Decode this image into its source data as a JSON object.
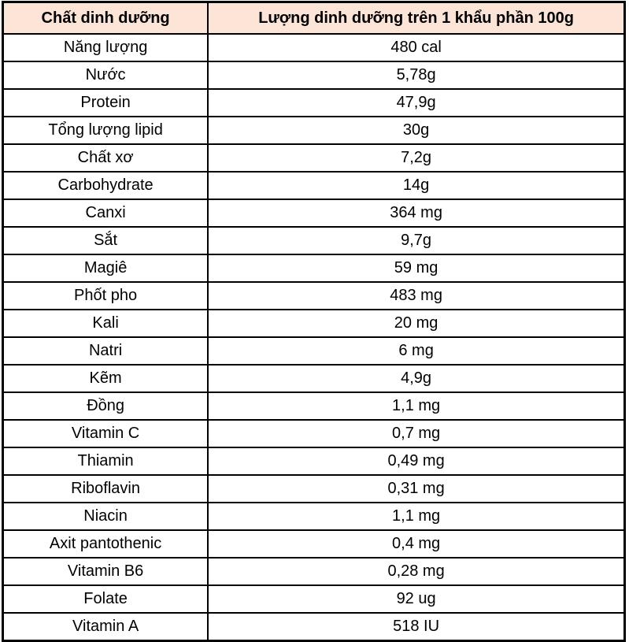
{
  "colors": {
    "header_bg": "#FCE4D6",
    "border": "#000000",
    "text": "#000000"
  },
  "table": {
    "columns": [
      "Chất dinh dưỡng",
      "Lượng dinh dưỡng trên 1 khẩu phần 100g"
    ],
    "rows": [
      {
        "nutrient": "Năng lượng",
        "amount": "480 cal"
      },
      {
        "nutrient": "Nước",
        "amount": "5,78g"
      },
      {
        "nutrient": "Protein",
        "amount": "47,9g"
      },
      {
        "nutrient": "Tổng lượng lipid",
        "amount": "30g"
      },
      {
        "nutrient": "Chất xơ",
        "amount": "7,2g"
      },
      {
        "nutrient": "Carbohydrate",
        "amount": "14g"
      },
      {
        "nutrient": "Canxi",
        "amount": "364 mg"
      },
      {
        "nutrient": "Sắt",
        "amount": "9,7g"
      },
      {
        "nutrient": "Magiê",
        "amount": "59 mg"
      },
      {
        "nutrient": "Phốt pho",
        "amount": "483 mg"
      },
      {
        "nutrient": "Kali",
        "amount": "20 mg"
      },
      {
        "nutrient": "Natri",
        "amount": "6 mg"
      },
      {
        "nutrient": "Kẽm",
        "amount": "4,9g"
      },
      {
        "nutrient": "Đồng",
        "amount": "1,1 mg"
      },
      {
        "nutrient": "Vitamin C",
        "amount": "0,7 mg"
      },
      {
        "nutrient": "Thiamin",
        "amount": "0,49 mg"
      },
      {
        "nutrient": "Riboflavin",
        "amount": "0,31 mg"
      },
      {
        "nutrient": "Niacin",
        "amount": "1,1 mg"
      },
      {
        "nutrient": "Axit pantothenic",
        "amount": "0,4 mg"
      },
      {
        "nutrient": "Vitamin B6",
        "amount": "0,28 mg"
      },
      {
        "nutrient": "Folate",
        "amount": "92 ug"
      },
      {
        "nutrient": "Vitamin A",
        "amount": "518 IU"
      }
    ]
  }
}
